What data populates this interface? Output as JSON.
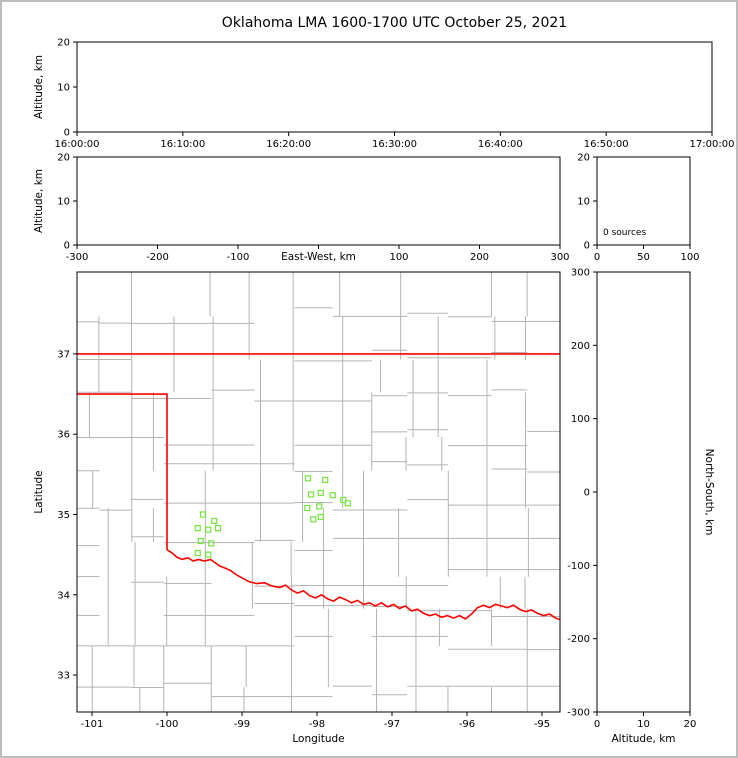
{
  "title": "Oklahoma LMA 1600-1700 UTC October 25, 2021",
  "colors": {
    "background": "#ffffff",
    "frame_border": "#bdbdbd",
    "axis": "#000000",
    "county_lines": "#b3b3b3",
    "state_border": "#ff0000",
    "station_marker": "#74e43c"
  },
  "chart_data": [
    {
      "id": "time_altitude",
      "type": "scatter",
      "xlabel": "",
      "ylabel": "Altitude, km",
      "xtick_labels": [
        "16:00:00",
        "16:10:00",
        "16:20:00",
        "16:30:00",
        "16:40:00",
        "16:50:00",
        "17:00:00"
      ],
      "ylim": [
        0,
        20
      ],
      "yticks": [
        0,
        10,
        20
      ],
      "points": []
    },
    {
      "id": "eastwest_altitude",
      "type": "scatter",
      "xlabel": "East-West, km",
      "ylabel": "Altitude, km",
      "xlim": [
        -300,
        300
      ],
      "xticks": [
        -300,
        -200,
        -100,
        0,
        100,
        200,
        300
      ],
      "hidden_xtick_label": 0,
      "ylim": [
        0,
        20
      ],
      "yticks": [
        0,
        10,
        20
      ],
      "points": []
    },
    {
      "id": "altitude_histogram",
      "type": "line",
      "annotation": "0 sources",
      "xlim": [
        0,
        100
      ],
      "xticks": [
        0,
        50,
        100
      ],
      "ylim": [
        0,
        20
      ],
      "yticks": [
        0,
        10,
        20
      ],
      "points": []
    },
    {
      "id": "plan_view_map",
      "type": "scatter",
      "xlabel": "Longitude",
      "ylabel": "Latitude",
      "xlim": [
        -101.2,
        -94.76
      ],
      "xticks": [
        -101,
        -100,
        -99,
        -98,
        -97,
        -96,
        -95
      ],
      "ylim": [
        32.54,
        38.02
      ],
      "yticks": [
        33,
        34,
        35,
        36,
        37
      ],
      "stations": [
        [
          -98.12,
          35.45
        ],
        [
          -97.89,
          35.43
        ],
        [
          -98.08,
          35.25
        ],
        [
          -97.95,
          35.27
        ],
        [
          -97.79,
          35.24
        ],
        [
          -98.13,
          35.08
        ],
        [
          -97.97,
          35.1
        ],
        [
          -97.65,
          35.18
        ],
        [
          -97.59,
          35.14
        ],
        [
          -98.05,
          34.94
        ],
        [
          -97.95,
          34.97
        ],
        [
          -99.52,
          35.0
        ],
        [
          -99.37,
          34.92
        ],
        [
          -99.59,
          34.83
        ],
        [
          -99.45,
          34.81
        ],
        [
          -99.32,
          34.83
        ],
        [
          -99.55,
          34.67
        ],
        [
          -99.41,
          34.64
        ],
        [
          -99.59,
          34.52
        ],
        [
          -99.45,
          34.5
        ]
      ],
      "state_border": {
        "north_line": [
          [
            -101.2,
            37.0
          ],
          [
            -94.76,
            37.0
          ]
        ],
        "panhandle": [
          [
            -101.2,
            36.5
          ],
          [
            -100.0,
            36.5
          ],
          [
            -100.0,
            34.56
          ]
        ],
        "red_river": [
          [
            -100.0,
            34.56
          ],
          [
            -99.93,
            34.52
          ],
          [
            -99.87,
            34.47
          ],
          [
            -99.8,
            34.44
          ],
          [
            -99.72,
            34.46
          ],
          [
            -99.65,
            34.42
          ],
          [
            -99.58,
            34.44
          ],
          [
            -99.5,
            34.42
          ],
          [
            -99.42,
            34.44
          ],
          [
            -99.36,
            34.4
          ],
          [
            -99.3,
            34.36
          ],
          [
            -99.22,
            34.33
          ],
          [
            -99.15,
            34.3
          ],
          [
            -99.06,
            34.24
          ],
          [
            -98.98,
            34.2
          ],
          [
            -98.9,
            34.16
          ],
          [
            -98.8,
            34.14
          ],
          [
            -98.7,
            34.15
          ],
          [
            -98.6,
            34.11
          ],
          [
            -98.5,
            34.09
          ],
          [
            -98.42,
            34.12
          ],
          [
            -98.34,
            34.06
          ],
          [
            -98.26,
            34.02
          ],
          [
            -98.18,
            34.05
          ],
          [
            -98.1,
            33.99
          ],
          [
            -98.02,
            33.96
          ],
          [
            -97.94,
            34.0
          ],
          [
            -97.86,
            33.95
          ],
          [
            -97.78,
            33.92
          ],
          [
            -97.7,
            33.97
          ],
          [
            -97.62,
            33.94
          ],
          [
            -97.54,
            33.9
          ],
          [
            -97.46,
            33.93
          ],
          [
            -97.38,
            33.88
          ],
          [
            -97.3,
            33.9
          ],
          [
            -97.22,
            33.86
          ],
          [
            -97.14,
            33.9
          ],
          [
            -97.06,
            33.85
          ],
          [
            -96.98,
            33.88
          ],
          [
            -96.9,
            33.83
          ],
          [
            -96.82,
            33.86
          ],
          [
            -96.74,
            33.8
          ],
          [
            -96.66,
            33.82
          ],
          [
            -96.58,
            33.77
          ],
          [
            -96.5,
            33.74
          ],
          [
            -96.42,
            33.76
          ],
          [
            -96.34,
            33.72
          ],
          [
            -96.26,
            33.74
          ],
          [
            -96.18,
            33.71
          ],
          [
            -96.1,
            33.74
          ],
          [
            -96.02,
            33.7
          ],
          [
            -95.94,
            33.76
          ],
          [
            -95.86,
            33.84
          ],
          [
            -95.78,
            33.87
          ],
          [
            -95.7,
            33.84
          ],
          [
            -95.62,
            33.88
          ],
          [
            -95.54,
            33.86
          ],
          [
            -95.46,
            33.84
          ],
          [
            -95.38,
            33.87
          ],
          [
            -95.3,
            33.82
          ],
          [
            -95.22,
            33.79
          ],
          [
            -95.14,
            33.81
          ],
          [
            -95.06,
            33.77
          ],
          [
            -94.98,
            33.74
          ],
          [
            -94.9,
            33.76
          ],
          [
            -94.82,
            33.71
          ],
          [
            -94.76,
            33.69
          ]
        ]
      }
    },
    {
      "id": "northsouth_altitude",
      "type": "scatter",
      "xlabel": "Altitude, km",
      "ylabel": "North-South, km",
      "xlim": [
        0,
        20
      ],
      "xticks": [
        0,
        10,
        20
      ],
      "ylim": [
        -300,
        300
      ],
      "yticks": [
        -300,
        -200,
        -100,
        0,
        100,
        200,
        300
      ],
      "points": []
    }
  ]
}
